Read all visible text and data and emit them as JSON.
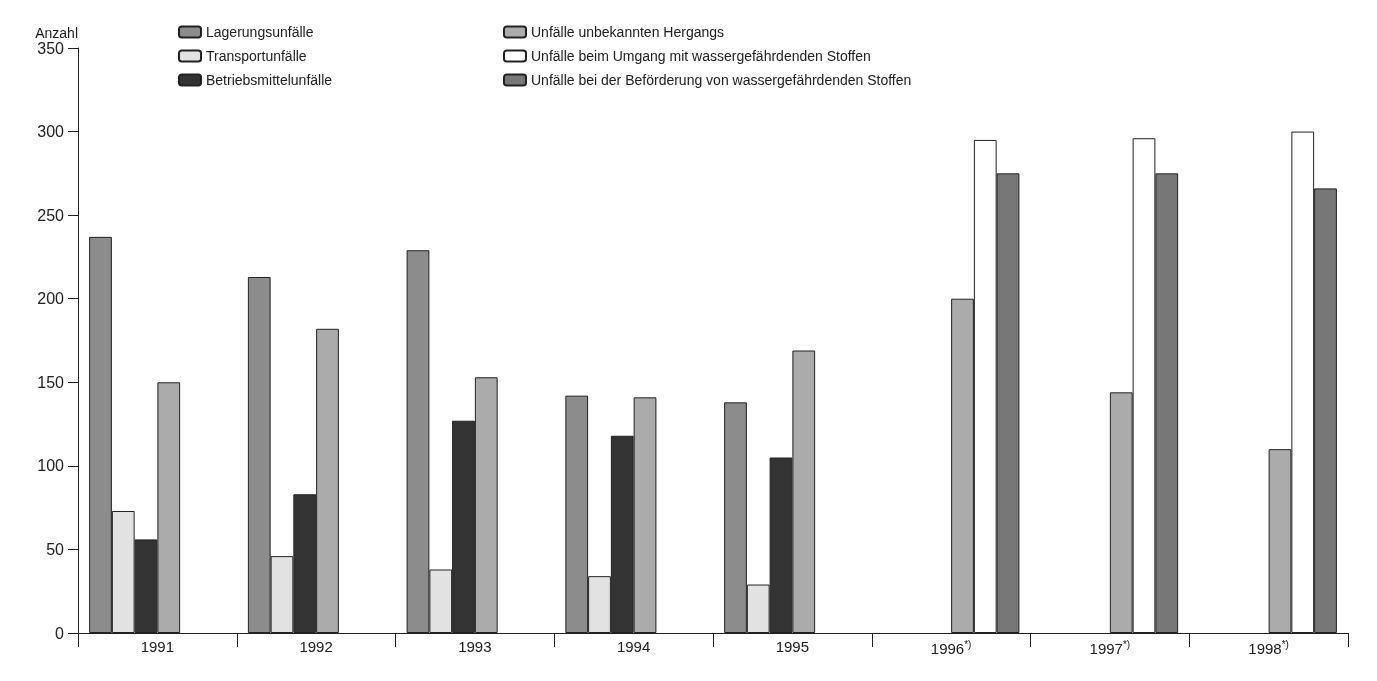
{
  "chart_data": {
    "type": "bar",
    "ylabel": "Anzahl",
    "categories": [
      "1991",
      "1992",
      "1993",
      "1994",
      "1995",
      "1996$^{*)}$",
      "1997$^{*)}$",
      "1998$^{*)}$"
    ],
    "series": [
      {
        "name": "Lagerungsunfälle",
        "color": "#8c8c8c",
        "values": [
          237,
          213,
          229,
          142,
          138,
          null,
          null,
          null
        ]
      },
      {
        "name": "Transportunfälle",
        "color": "#e2e2e2",
        "values": [
          73,
          46,
          38,
          34,
          29,
          null,
          null,
          null
        ]
      },
      {
        "name": "Betriebsmittelunfälle",
        "color": "#333333",
        "values": [
          56,
          83,
          127,
          118,
          105,
          null,
          null,
          null
        ]
      },
      {
        "name": "Unfälle unbekannten Hergangs",
        "color": "#ababab",
        "values": [
          150,
          182,
          153,
          141,
          169,
          200,
          144,
          110
        ]
      },
      {
        "name": "Unfälle beim Umgang mit wassergefährdenden Stoffen",
        "color": "#ffffff",
        "values": [
          null,
          null,
          null,
          null,
          null,
          295,
          296,
          300
        ]
      },
      {
        "name": "Unfälle bei der Beförderung von wassergefährdenden Stoffen",
        "color": "#777777",
        "values": [
          null,
          null,
          null,
          null,
          null,
          275,
          275,
          266
        ]
      }
    ],
    "ylim": [
      0,
      350
    ],
    "yticks": [
      0,
      50,
      100,
      150,
      200,
      250,
      300,
      350
    ],
    "grid": false,
    "legend": "top"
  }
}
